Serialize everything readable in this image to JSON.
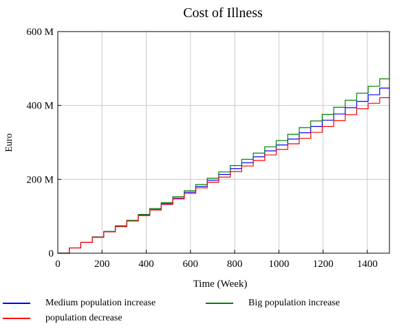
{
  "chart_data": {
    "type": "line",
    "title": "Cost of Illness",
    "xlabel": "Time (Week)",
    "ylabel": "Euro",
    "xlim": [
      0,
      1500
    ],
    "ylim": [
      0,
      600000000
    ],
    "x_ticks": [
      0,
      200,
      400,
      600,
      800,
      1000,
      1200,
      1400
    ],
    "x_tick_labels": [
      "0",
      "200",
      "400",
      "600",
      "800",
      "1000",
      "1200",
      "1400"
    ],
    "y_ticks": [
      0,
      200000000,
      400000000,
      600000000
    ],
    "y_tick_labels": [
      "0",
      "200 M",
      "400 M",
      "600 M"
    ],
    "grid": true,
    "legend_position": "bottom",
    "step_weeks": 52,
    "step_x": [
      52,
      104,
      156,
      208,
      260,
      312,
      364,
      416,
      468,
      520,
      572,
      624,
      676,
      728,
      780,
      832,
      884,
      936,
      988,
      1040,
      1092,
      1144,
      1196,
      1248,
      1300,
      1352,
      1404,
      1456
    ],
    "series": [
      {
        "name": "Medium population increase",
        "color": "#0000ff",
        "x": [
          0,
          52,
          104,
          156,
          208,
          260,
          312,
          364,
          416,
          468,
          520,
          572,
          624,
          676,
          728,
          780,
          832,
          884,
          936,
          988,
          1040,
          1092,
          1144,
          1196,
          1248,
          1300,
          1352,
          1404,
          1456,
          1500
        ],
        "values": [
          0,
          14000000,
          29000000,
          44000000,
          58000000,
          73000000,
          88000000,
          103000000,
          118000000,
          134000000,
          149000000,
          165000000,
          181000000,
          197000000,
          213000000,
          229000000,
          245000000,
          261000000,
          277000000,
          293000000,
          309000000,
          326000000,
          343000000,
          360000000,
          377000000,
          394000000,
          411000000,
          429000000,
          447000000,
          447000000
        ]
      },
      {
        "name": "Big population increase",
        "color": "#008000",
        "x": [
          0,
          52,
          104,
          156,
          208,
          260,
          312,
          364,
          416,
          468,
          520,
          572,
          624,
          676,
          728,
          780,
          832,
          884,
          936,
          988,
          1040,
          1092,
          1144,
          1196,
          1248,
          1300,
          1352,
          1404,
          1456,
          1500
        ],
        "values": [
          0,
          14000000,
          29000000,
          44000000,
          59000000,
          74000000,
          89000000,
          105000000,
          121000000,
          137000000,
          153000000,
          169000000,
          186000000,
          203000000,
          220000000,
          237000000,
          254000000,
          271000000,
          288000000,
          305000000,
          322000000,
          340000000,
          358000000,
          376000000,
          395000000,
          414000000,
          433000000,
          452000000,
          472000000,
          472000000
        ]
      },
      {
        "name": "population decrease",
        "color": "#ff0000",
        "x": [
          0,
          52,
          104,
          156,
          208,
          260,
          312,
          364,
          416,
          468,
          520,
          572,
          624,
          676,
          728,
          780,
          832,
          884,
          936,
          988,
          1040,
          1092,
          1144,
          1196,
          1248,
          1300,
          1352,
          1404,
          1456,
          1500
        ],
        "values": [
          0,
          14000000,
          29000000,
          43000000,
          58000000,
          72000000,
          87000000,
          102000000,
          117000000,
          132000000,
          147000000,
          162000000,
          177000000,
          192000000,
          206000000,
          221000000,
          236000000,
          251000000,
          266000000,
          281000000,
          296000000,
          311000000,
          327000000,
          343000000,
          359000000,
          375000000,
          391000000,
          406000000,
          421000000,
          421000000
        ]
      }
    ]
  }
}
